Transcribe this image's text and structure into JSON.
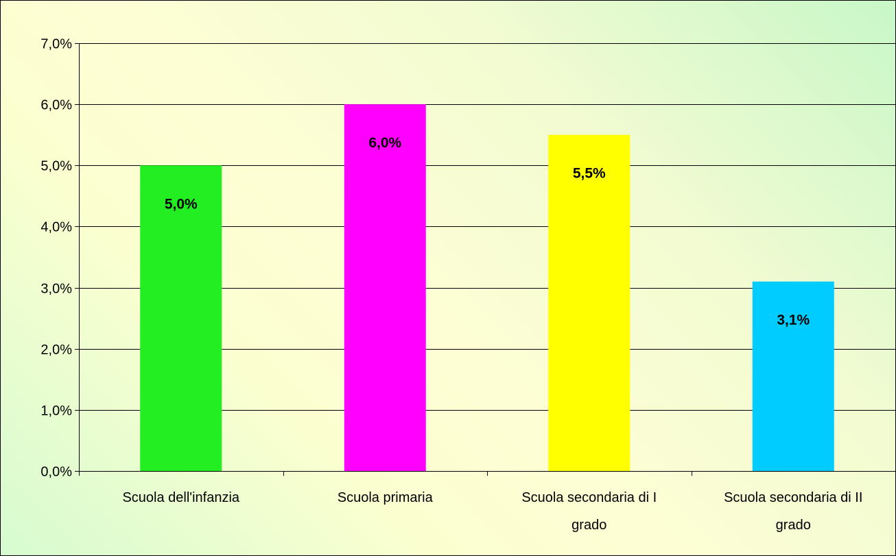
{
  "chart_data": {
    "type": "bar",
    "categories": [
      [
        "Scuola dell'infanzia"
      ],
      [
        "Scuola primaria"
      ],
      [
        "Scuola secondaria di I",
        "grado"
      ],
      [
        "Scuola secondaria di II",
        "grado"
      ]
    ],
    "values": [
      5.0,
      6.0,
      5.5,
      3.1
    ],
    "data_labels": [
      "5,0%",
      "6,0%",
      "5,5%",
      "3,1%"
    ],
    "colors": [
      "#22ee22",
      "#ff00ff",
      "#ffff00",
      "#00ccff"
    ],
    "ylim": [
      0,
      7
    ],
    "y_ticks": [
      0,
      1,
      2,
      3,
      4,
      5,
      6,
      7
    ],
    "y_tick_labels": [
      "0,0%",
      "1,0%",
      "2,0%",
      "3,0%",
      "4,0%",
      "5,0%",
      "6,0%",
      "7,0%"
    ],
    "grid": true,
    "legend": "none"
  }
}
